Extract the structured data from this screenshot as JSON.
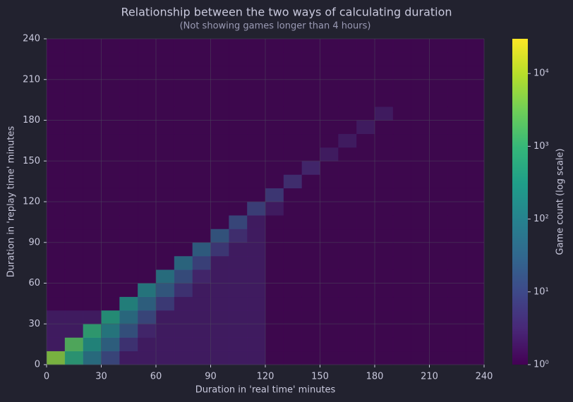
{
  "chart_data": {
    "type": "hist2d",
    "title": "Relationship between the two ways of calculating duration",
    "subtitle": "(Not showing games longer than 4 hours)",
    "xlabel": "Duration in 'real time' minutes",
    "ylabel": "Duration in 'replay time' minutes",
    "xbins": [
      0,
      10,
      20,
      30,
      40,
      50,
      60,
      70,
      80,
      90,
      100,
      110,
      120,
      130,
      140,
      150,
      160,
      170,
      180,
      190,
      200,
      210,
      220,
      230,
      240
    ],
    "ybins": [
      0,
      10,
      20,
      30,
      40,
      50,
      60,
      70,
      80,
      90,
      100,
      110,
      120,
      130,
      140,
      150,
      160,
      170,
      180,
      190,
      200,
      210,
      220,
      230,
      240
    ],
    "z": [
      [
        5000,
        600,
        72,
        11,
        2,
        2,
        2,
        2,
        2,
        2,
        2,
        2,
        1,
        1,
        1,
        1,
        1,
        1,
        1,
        1,
        1,
        1,
        1,
        1
      ],
      [
        2,
        2000,
        240,
        36,
        5,
        2,
        2,
        2,
        2,
        2,
        2,
        2,
        1,
        1,
        1,
        1,
        1,
        1,
        1,
        1,
        1,
        1,
        1,
        1
      ],
      [
        2,
        2,
        800,
        120,
        18,
        3,
        2,
        2,
        2,
        2,
        2,
        2,
        1,
        1,
        1,
        1,
        1,
        1,
        1,
        1,
        1,
        1,
        1,
        1
      ],
      [
        2,
        2,
        2,
        400,
        60,
        11,
        2,
        2,
        2,
        2,
        2,
        2,
        1,
        1,
        1,
        1,
        1,
        1,
        1,
        1,
        1,
        1,
        1,
        1
      ],
      [
        1,
        1,
        1,
        1,
        200,
        36,
        7,
        2,
        2,
        2,
        2,
        2,
        1,
        1,
        1,
        1,
        1,
        1,
        1,
        1,
        1,
        1,
        1,
        1
      ],
      [
        1,
        1,
        1,
        1,
        1,
        120,
        24,
        5,
        2,
        2,
        2,
        2,
        1,
        1,
        1,
        1,
        1,
        1,
        1,
        1,
        1,
        1,
        1,
        1
      ],
      [
        1,
        1,
        1,
        1,
        1,
        1,
        80,
        15,
        3,
        2,
        2,
        2,
        1,
        1,
        1,
        1,
        1,
        1,
        1,
        1,
        1,
        1,
        1,
        1
      ],
      [
        1,
        1,
        1,
        1,
        1,
        1,
        1,
        50,
        9,
        2,
        2,
        2,
        1,
        1,
        1,
        1,
        1,
        1,
        1,
        1,
        1,
        1,
        1,
        1
      ],
      [
        1,
        1,
        1,
        1,
        1,
        1,
        1,
        1,
        30,
        6,
        2,
        2,
        1,
        1,
        1,
        1,
        1,
        1,
        1,
        1,
        1,
        1,
        1,
        1
      ],
      [
        1,
        1,
        1,
        1,
        1,
        1,
        1,
        1,
        1,
        20,
        4,
        2,
        1,
        1,
        1,
        1,
        1,
        1,
        1,
        1,
        1,
        1,
        1,
        1
      ],
      [
        1,
        1,
        1,
        1,
        1,
        1,
        1,
        1,
        1,
        1,
        12,
        2,
        1,
        1,
        1,
        1,
        1,
        1,
        1,
        1,
        1,
        1,
        1,
        1
      ],
      [
        1,
        1,
        1,
        1,
        1,
        1,
        1,
        1,
        1,
        1,
        1,
        8,
        2,
        1,
        1,
        1,
        1,
        1,
        1,
        1,
        1,
        1,
        1,
        1
      ],
      [
        1,
        1,
        1,
        1,
        1,
        1,
        1,
        1,
        1,
        1,
        1,
        1,
        6,
        1,
        1,
        1,
        1,
        1,
        1,
        1,
        1,
        1,
        1,
        1
      ],
      [
        1,
        1,
        1,
        1,
        1,
        1,
        1,
        1,
        1,
        1,
        1,
        1,
        1,
        4,
        1,
        1,
        1,
        1,
        1,
        1,
        1,
        1,
        1,
        1
      ],
      [
        1,
        1,
        1,
        1,
        1,
        1,
        1,
        1,
        1,
        1,
        1,
        1,
        1,
        1,
        3,
        1,
        1,
        1,
        1,
        1,
        1,
        1,
        1,
        1
      ],
      [
        1,
        1,
        1,
        1,
        1,
        1,
        1,
        1,
        1,
        1,
        1,
        1,
        1,
        1,
        1,
        2,
        1,
        1,
        1,
        1,
        1,
        1,
        1,
        1
      ],
      [
        1,
        1,
        1,
        1,
        1,
        1,
        1,
        1,
        1,
        1,
        1,
        1,
        1,
        1,
        1,
        1,
        2,
        1,
        1,
        1,
        1,
        1,
        1,
        1
      ],
      [
        1,
        1,
        1,
        1,
        1,
        1,
        1,
        1,
        1,
        1,
        1,
        1,
        1,
        1,
        1,
        1,
        1,
        2,
        1,
        1,
        1,
        1,
        1,
        1
      ],
      [
        1,
        1,
        1,
        1,
        1,
        1,
        1,
        1,
        1,
        1,
        1,
        1,
        1,
        1,
        1,
        1,
        1,
        1,
        2,
        1,
        1,
        1,
        1,
        1
      ],
      [
        1,
        1,
        1,
        1,
        1,
        1,
        1,
        1,
        1,
        1,
        1,
        1,
        1,
        1,
        1,
        1,
        1,
        1,
        1,
        1,
        1,
        1,
        1,
        1
      ],
      [
        1,
        1,
        1,
        1,
        1,
        1,
        1,
        1,
        1,
        1,
        1,
        1,
        1,
        1,
        1,
        1,
        1,
        1,
        1,
        1,
        1,
        1,
        1,
        1
      ],
      [
        1,
        1,
        1,
        1,
        1,
        1,
        1,
        1,
        1,
        1,
        1,
        1,
        1,
        1,
        1,
        1,
        1,
        1,
        1,
        1,
        1,
        1,
        1,
        1
      ],
      [
        1,
        1,
        1,
        1,
        1,
        1,
        1,
        1,
        1,
        1,
        1,
        1,
        1,
        1,
        1,
        1,
        1,
        1,
        1,
        1,
        1,
        1,
        1,
        1
      ],
      [
        1,
        1,
        1,
        1,
        1,
        1,
        1,
        1,
        1,
        1,
        1,
        1,
        1,
        1,
        1,
        1,
        1,
        1,
        1,
        1,
        1,
        1,
        1,
        1
      ]
    ],
    "xlim": [
      0,
      240
    ],
    "ylim": [
      0,
      240
    ],
    "xticks": [
      0,
      30,
      60,
      90,
      120,
      150,
      180,
      210,
      240
    ],
    "yticks": [
      0,
      30,
      60,
      90,
      120,
      150,
      180,
      210,
      240
    ],
    "grid": true,
    "colormap": "viridis",
    "colorbar": {
      "label": "Game count (log scale)",
      "log": true,
      "lim": [
        1,
        30000
      ],
      "ticks": [
        {
          "value": 1,
          "label": "10⁰"
        },
        {
          "value": 10,
          "label": "10¹"
        },
        {
          "value": 100,
          "label": "10²"
        },
        {
          "value": 1000,
          "label": "10³"
        },
        {
          "value": 10000,
          "label": "10⁴"
        }
      ]
    }
  }
}
